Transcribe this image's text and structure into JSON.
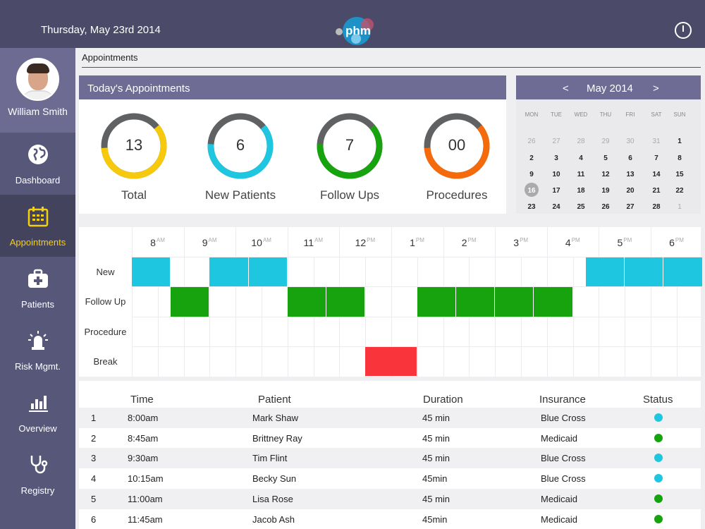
{
  "header": {
    "date": "Thursday, May  23rd 2014",
    "logo_text": "phm"
  },
  "sidebar": {
    "user_name": "William Smith",
    "items": [
      {
        "label": "Dashboard",
        "icon": "globe-icon"
      },
      {
        "label": "Appointments",
        "icon": "calendar-icon",
        "active": true
      },
      {
        "label": "Patients",
        "icon": "medical-kit-icon"
      },
      {
        "label": "Risk Mgmt.",
        "icon": "alarm-light-icon"
      },
      {
        "label": "Overview",
        "icon": "bar-chart-icon"
      },
      {
        "label": "Registry",
        "icon": "stethoscope-icon"
      }
    ]
  },
  "breadcrumb": "Appointments",
  "summary": {
    "title": "Today's Appointments",
    "stats": [
      {
        "value": "13",
        "label": "Total",
        "color": "#f7c90c",
        "fraction": 0.6
      },
      {
        "value": "6",
        "label": "New Patients",
        "color": "#1ec6e0",
        "fraction": 0.62
      },
      {
        "value": "7",
        "label": "Follow Ups",
        "color": "#17a30d",
        "fraction": 0.62
      },
      {
        "value": "00",
        "label": "Procedures",
        "color": "#f56b0c",
        "fraction": 0.6
      }
    ],
    "track_color": "#5f6163"
  },
  "calendar": {
    "prev": "<",
    "title": "May 2014",
    "next": ">",
    "dow": [
      "MON",
      "TUE",
      "WED",
      "THU",
      "FRI",
      "SAT",
      "SUN"
    ],
    "weeks": [
      [
        "26",
        "27",
        "28",
        "29",
        "30",
        "31",
        "1"
      ],
      [
        "2",
        "3",
        "4",
        "5",
        "6",
        "7",
        "8"
      ],
      [
        "9",
        "10",
        "11",
        "12",
        "13",
        "14",
        "15"
      ],
      [
        "16",
        "17",
        "18",
        "19",
        "20",
        "21",
        "22"
      ],
      [
        "23",
        "24",
        "25",
        "26",
        "27",
        "28",
        "1"
      ]
    ]
  },
  "schedule": {
    "hours": [
      {
        "h": "8",
        "ap": "AM"
      },
      {
        "h": "9",
        "ap": "AM"
      },
      {
        "h": "10",
        "ap": "AM"
      },
      {
        "h": "11",
        "ap": "AM"
      },
      {
        "h": "12",
        "ap": "PM"
      },
      {
        "h": "1",
        "ap": "PM"
      },
      {
        "h": "2",
        "ap": "PM"
      },
      {
        "h": "3",
        "ap": "PM"
      },
      {
        "h": "4",
        "ap": "PM"
      },
      {
        "h": "5",
        "ap": "PM"
      },
      {
        "h": "6",
        "ap": "PM"
      }
    ],
    "rows": [
      "New",
      "Follow Up",
      "Procedure",
      "Break"
    ],
    "colors": {
      "New": "#1ec6e0",
      "Follow Up": "#17a30d",
      "Procedure": "#1ec6e0",
      "Break": "#fa343b"
    },
    "bookings": [
      {
        "row": "New",
        "start": "8:00",
        "end": "8:45"
      },
      {
        "row": "New",
        "start": "9:30",
        "end": "10:15"
      },
      {
        "row": "New",
        "start": "10:15",
        "end": "11:00"
      },
      {
        "row": "New",
        "start": "4:45",
        "end": "5:30"
      },
      {
        "row": "New",
        "start": "5:30",
        "end": "6:15"
      },
      {
        "row": "New",
        "start": "6:15",
        "end": "7:00"
      },
      {
        "row": "Follow Up",
        "start": "8:45",
        "end": "9:30"
      },
      {
        "row": "Follow Up",
        "start": "11:00",
        "end": "11:45"
      },
      {
        "row": "Follow Up",
        "start": "11:45",
        "end": "12:30"
      },
      {
        "row": "Follow Up",
        "start": "1:30",
        "end": "2:15"
      },
      {
        "row": "Follow Up",
        "start": "2:15",
        "end": "3:00"
      },
      {
        "row": "Follow Up",
        "start": "3:00",
        "end": "3:45"
      },
      {
        "row": "Follow Up",
        "start": "3:45",
        "end": "4:30"
      },
      {
        "row": "Break",
        "start": "12:30",
        "end": "1:30"
      }
    ]
  },
  "table": {
    "columns": [
      "Time",
      "Patient",
      "Duration",
      "Insurance",
      "Status"
    ],
    "rows": [
      {
        "n": "1",
        "time": "8:00am",
        "patient": "Mark Shaw",
        "duration": "45 min",
        "insurance": "Blue Cross",
        "status": "New",
        "status_color": "#1ec6e0"
      },
      {
        "n": "2",
        "time": "8:45am",
        "patient": "Brittney Ray",
        "duration": "45 min",
        "insurance": "Medicaid",
        "status": "Follow Up",
        "status_color": "#17a30d"
      },
      {
        "n": "3",
        "time": "9:30am",
        "patient": "Tim Flint",
        "duration": "45 min",
        "insurance": "Blue Cross",
        "status": "New",
        "status_color": "#1ec6e0"
      },
      {
        "n": "4",
        "time": "10:15am",
        "patient": "Becky Sun",
        "duration": "45min",
        "insurance": "Blue Cross",
        "status": "New",
        "status_color": "#1ec6e0"
      },
      {
        "n": "5",
        "time": "11:00am",
        "patient": "Lisa Rose",
        "duration": "45 min",
        "insurance": "Medicaid",
        "status": "Follow Up",
        "status_color": "#17a30d"
      },
      {
        "n": "6",
        "time": "11:45am",
        "patient": "Jacob Ash",
        "duration": "45min",
        "insurance": "Medicaid",
        "status": "Follow Up",
        "status_color": "#17a30d"
      }
    ]
  }
}
